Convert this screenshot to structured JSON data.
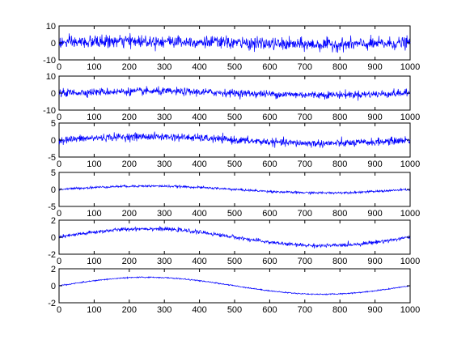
{
  "chart_data": [
    {
      "type": "line",
      "title": "",
      "xlabel": "",
      "ylabel": "",
      "xlim": [
        0,
        1000
      ],
      "ylim": [
        -10,
        10
      ],
      "xticks": [
        "0",
        "100",
        "200",
        "300",
        "400",
        "500",
        "600",
        "700",
        "800",
        "900",
        "1000"
      ],
      "yticks": [
        "10",
        "0",
        "-10"
      ],
      "series": [
        {
          "color": "#0000ff",
          "trend": "sin",
          "trend_amplitude": 1.0,
          "noise_amplitude": 3.3,
          "n_points": 1000
        }
      ]
    },
    {
      "type": "line",
      "title": "",
      "xlabel": "",
      "ylabel": "",
      "xlim": [
        0,
        1000
      ],
      "ylim": [
        -10,
        10
      ],
      "xticks": [
        "0",
        "100",
        "200",
        "300",
        "400",
        "500",
        "600",
        "700",
        "800",
        "900",
        "1000"
      ],
      "yticks": [
        "10",
        "0",
        "-10"
      ],
      "series": [
        {
          "color": "#0000ff",
          "trend": "sin",
          "trend_amplitude": 1.0,
          "noise_amplitude": 2.0,
          "n_points": 1000
        }
      ]
    },
    {
      "type": "line",
      "title": "",
      "xlabel": "",
      "ylabel": "",
      "xlim": [
        0,
        1000
      ],
      "ylim": [
        -5,
        5
      ],
      "xticks": [
        "0",
        "100",
        "200",
        "300",
        "400",
        "500",
        "600",
        "700",
        "800",
        "900",
        "1000"
      ],
      "yticks": [
        "5",
        "0",
        "-5"
      ],
      "series": [
        {
          "color": "#0000ff",
          "trend": "sin",
          "trend_amplitude": 1.0,
          "noise_amplitude": 1.0,
          "n_points": 1000
        }
      ]
    },
    {
      "type": "line",
      "title": "",
      "xlabel": "",
      "ylabel": "",
      "xlim": [
        0,
        1000
      ],
      "ylim": [
        -5,
        5
      ],
      "xticks": [
        "0",
        "100",
        "200",
        "300",
        "400",
        "500",
        "600",
        "700",
        "800",
        "900",
        "1000"
      ],
      "yticks": [
        "5",
        "0",
        "-5"
      ],
      "series": [
        {
          "color": "#0000ff",
          "trend": "sin",
          "trend_amplitude": 1.0,
          "noise_amplitude": 0.3,
          "n_points": 1000
        }
      ]
    },
    {
      "type": "line",
      "title": "",
      "xlabel": "",
      "ylabel": "",
      "xlim": [
        0,
        1000
      ],
      "ylim": [
        -2,
        2
      ],
      "xticks": [
        "0",
        "100",
        "200",
        "300",
        "400",
        "500",
        "600",
        "700",
        "800",
        "900",
        "1000"
      ],
      "yticks": [
        "2",
        "0",
        "-2"
      ],
      "series": [
        {
          "color": "#0000ff",
          "trend": "sin",
          "trend_amplitude": 1.0,
          "noise_amplitude": 0.2,
          "n_points": 1000
        }
      ]
    },
    {
      "type": "line",
      "title": "",
      "xlabel": "",
      "ylabel": "",
      "xlim": [
        0,
        1000
      ],
      "ylim": [
        -2,
        2
      ],
      "xticks": [
        "0",
        "100",
        "200",
        "300",
        "400",
        "500",
        "600",
        "700",
        "800",
        "900",
        "1000"
      ],
      "yticks": [
        "2",
        "0",
        "-2"
      ],
      "series": [
        {
          "color": "#0000ff",
          "trend": "sin",
          "trend_amplitude": 1.0,
          "noise_amplitude": 0.06,
          "n_points": 1000
        }
      ]
    }
  ]
}
